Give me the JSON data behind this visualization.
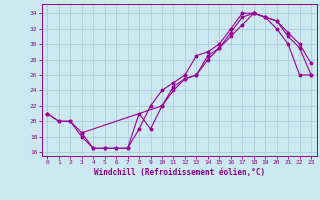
{
  "xlabel": "Windchill (Refroidissement éolien,°C)",
  "bg_color": "#cce8f0",
  "grid_color": "#aaccdd",
  "line_color": "#990099",
  "xlim": [
    -0.5,
    23.5
  ],
  "ylim": [
    15.5,
    35.2
  ],
  "xticks": [
    0,
    1,
    2,
    3,
    4,
    5,
    6,
    7,
    8,
    9,
    10,
    11,
    12,
    13,
    14,
    15,
    16,
    17,
    18,
    19,
    20,
    21,
    22,
    23
  ],
  "yticks": [
    16,
    18,
    20,
    22,
    24,
    26,
    28,
    30,
    32,
    34
  ],
  "line1_x": [
    0,
    1,
    2,
    3,
    4,
    5,
    6,
    7,
    8,
    9,
    10,
    11,
    12,
    13,
    14,
    15,
    16,
    17,
    18,
    19,
    20,
    21,
    22,
    23
  ],
  "line1_y": [
    21,
    20,
    20,
    18,
    16.5,
    16.5,
    16.5,
    16.5,
    19,
    22,
    24,
    25,
    26,
    28.5,
    29,
    30,
    32,
    34,
    34,
    33.5,
    32,
    30,
    26,
    26
  ],
  "line2_x": [
    0,
    1,
    2,
    3,
    10,
    11,
    12,
    13,
    14,
    15,
    16,
    17,
    18,
    19,
    20,
    21,
    22,
    23
  ],
  "line2_y": [
    21,
    20,
    20,
    18.5,
    22,
    24.5,
    25.5,
    26,
    28,
    29.5,
    31,
    32.5,
    34,
    33.5,
    33,
    31.5,
    30,
    27.5
  ],
  "line3_x": [
    3,
    4,
    5,
    6,
    7,
    8,
    9,
    10,
    11,
    12,
    13,
    14,
    15,
    16,
    17,
    18,
    19,
    20,
    21,
    22,
    23
  ],
  "line3_y": [
    18.5,
    16.5,
    16.5,
    16.5,
    16.5,
    21,
    19,
    22,
    24,
    25.5,
    26,
    28.5,
    29.5,
    31.5,
    33.5,
    34,
    33.5,
    33,
    31,
    29.5,
    26
  ]
}
